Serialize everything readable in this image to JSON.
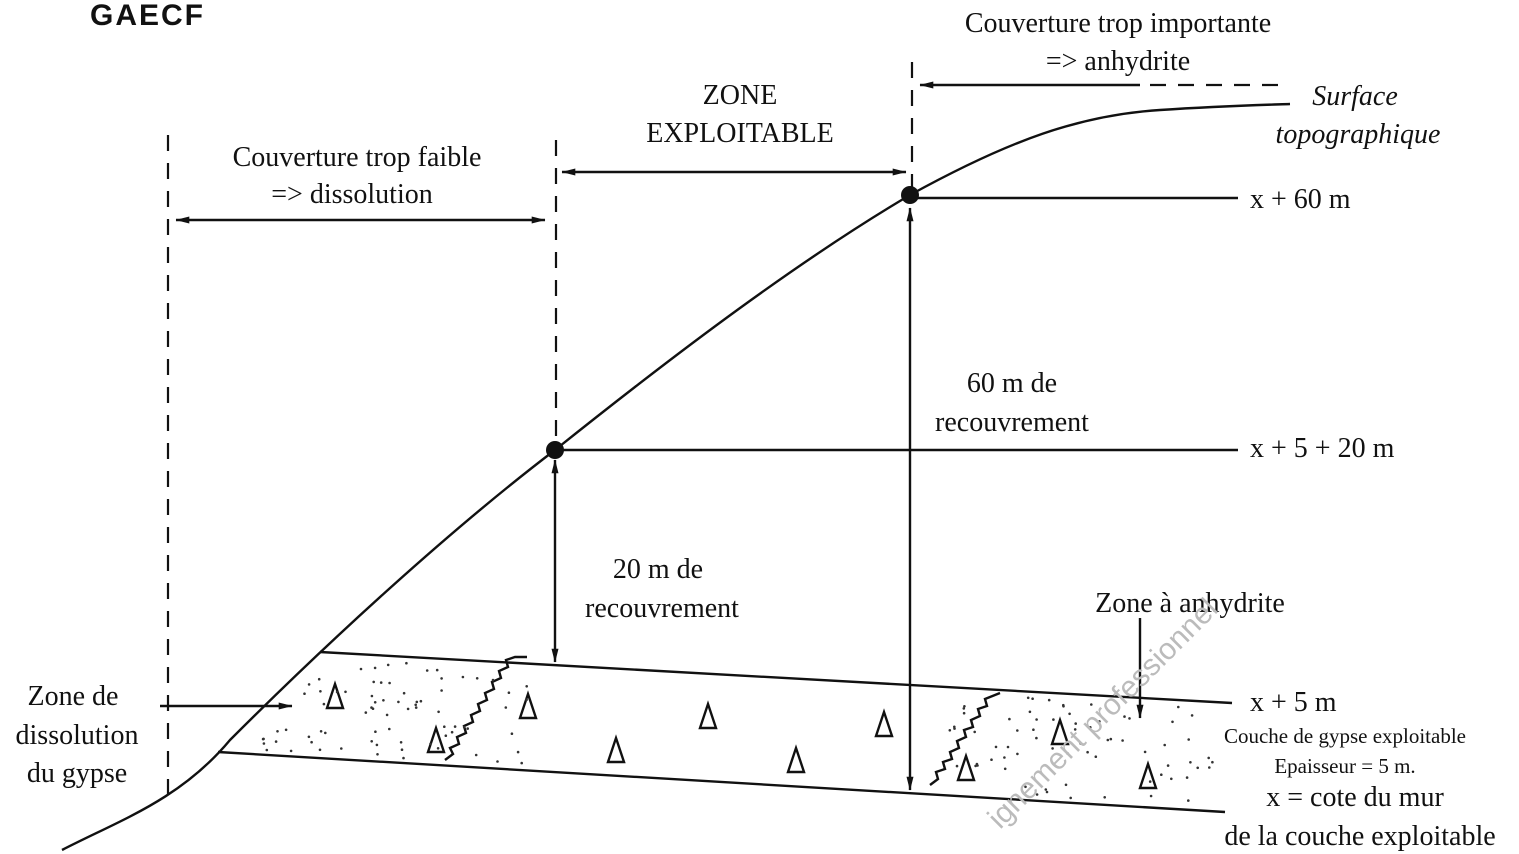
{
  "header": {
    "title": "GAECF"
  },
  "labels": {
    "couverture_importante": [
      "Couverture trop importante",
      "=> anhydrite"
    ],
    "zone_exploitable": [
      "ZONE",
      "EXPLOITABLE"
    ],
    "surface": [
      "Surface",
      "topographique"
    ],
    "couverture_faible": [
      "Couverture trop faible",
      "=> dissolution"
    ],
    "level_60": "x  +  60 m",
    "recouvrement_60": [
      "60 m de",
      "recouvrement"
    ],
    "level_25": "x  + 5 + 20 m",
    "recouvrement_20": [
      "20 m de",
      "recouvrement"
    ],
    "zone_anhydrite": "Zone à anhydrite",
    "zone_dissolution": [
      "Zone de",
      "dissolution",
      "du gypse"
    ],
    "level_5": "x  + 5 m",
    "couche": [
      "Couche de gypse exploitable",
      "Epaisseur = 5 m."
    ],
    "cote": [
      "x  = cote du mur",
      "de la couche exploitable"
    ]
  },
  "watermark": "ignement professionnel"
}
